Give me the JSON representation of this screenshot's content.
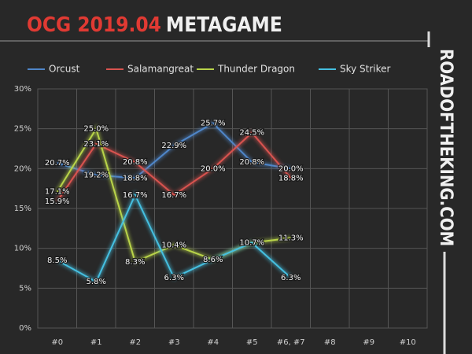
{
  "title_prefix": "OCG 2019.04",
  "title_main": "METAGAME",
  "site": "ROADOFTHEKING.COM",
  "chart_data": {
    "type": "line",
    "categories": [
      "#0",
      "#1",
      "#2",
      "#3",
      "#4",
      "#5",
      "#6, #7",
      "#8",
      "#9",
      "#10"
    ],
    "ylim": [
      0,
      30
    ],
    "yticks": [
      {
        "value": 0,
        "label": "0%"
      },
      {
        "value": 5,
        "label": "5%"
      },
      {
        "value": 10,
        "label": "10%"
      },
      {
        "value": 15,
        "label": "15%"
      },
      {
        "value": 20,
        "label": "20%"
      },
      {
        "value": 25,
        "label": "25%"
      },
      {
        "value": 30,
        "label": "30%"
      }
    ],
    "grid": true,
    "legend": "top",
    "series": [
      {
        "name": "Orcust",
        "color": "#4f86c9",
        "values": [
          20.7,
          19.2,
          18.8,
          22.9,
          25.7,
          20.8,
          20.0,
          null,
          null,
          null
        ],
        "value_labels": [
          "20.7%",
          "19.2%",
          "18.8%",
          "22.9%",
          "25.7%",
          "20.8%",
          "20.0%",
          null,
          null,
          null
        ]
      },
      {
        "name": "Salamangreat",
        "color": "#d9534f",
        "values": [
          15.9,
          23.1,
          20.8,
          16.7,
          20.0,
          24.5,
          18.8,
          null,
          null,
          null
        ],
        "value_labels": [
          "15.9%",
          "23.1%",
          "20.8%",
          "16.7%",
          "20.0%",
          "24.5%",
          "18.8%",
          null,
          null,
          null
        ]
      },
      {
        "name": "Thunder Dragon",
        "color": "#b9d449",
        "values": [
          17.1,
          25.0,
          8.3,
          10.4,
          8.6,
          10.7,
          11.3,
          null,
          null,
          null
        ],
        "value_labels": [
          "17.1%",
          "25.0%",
          "8.3%",
          "10.4%",
          "8.6%",
          "10.7%",
          "11.3%",
          null,
          null,
          null
        ]
      },
      {
        "name": "Sky Striker",
        "color": "#45bfe0",
        "values": [
          8.5,
          5.8,
          16.7,
          6.3,
          8.6,
          10.7,
          6.3,
          null,
          null,
          null
        ],
        "value_labels": [
          "8.5%",
          "5.8%",
          "16.7%",
          "6.3%",
          null,
          null,
          "6.3%",
          null,
          null,
          null
        ]
      }
    ]
  }
}
